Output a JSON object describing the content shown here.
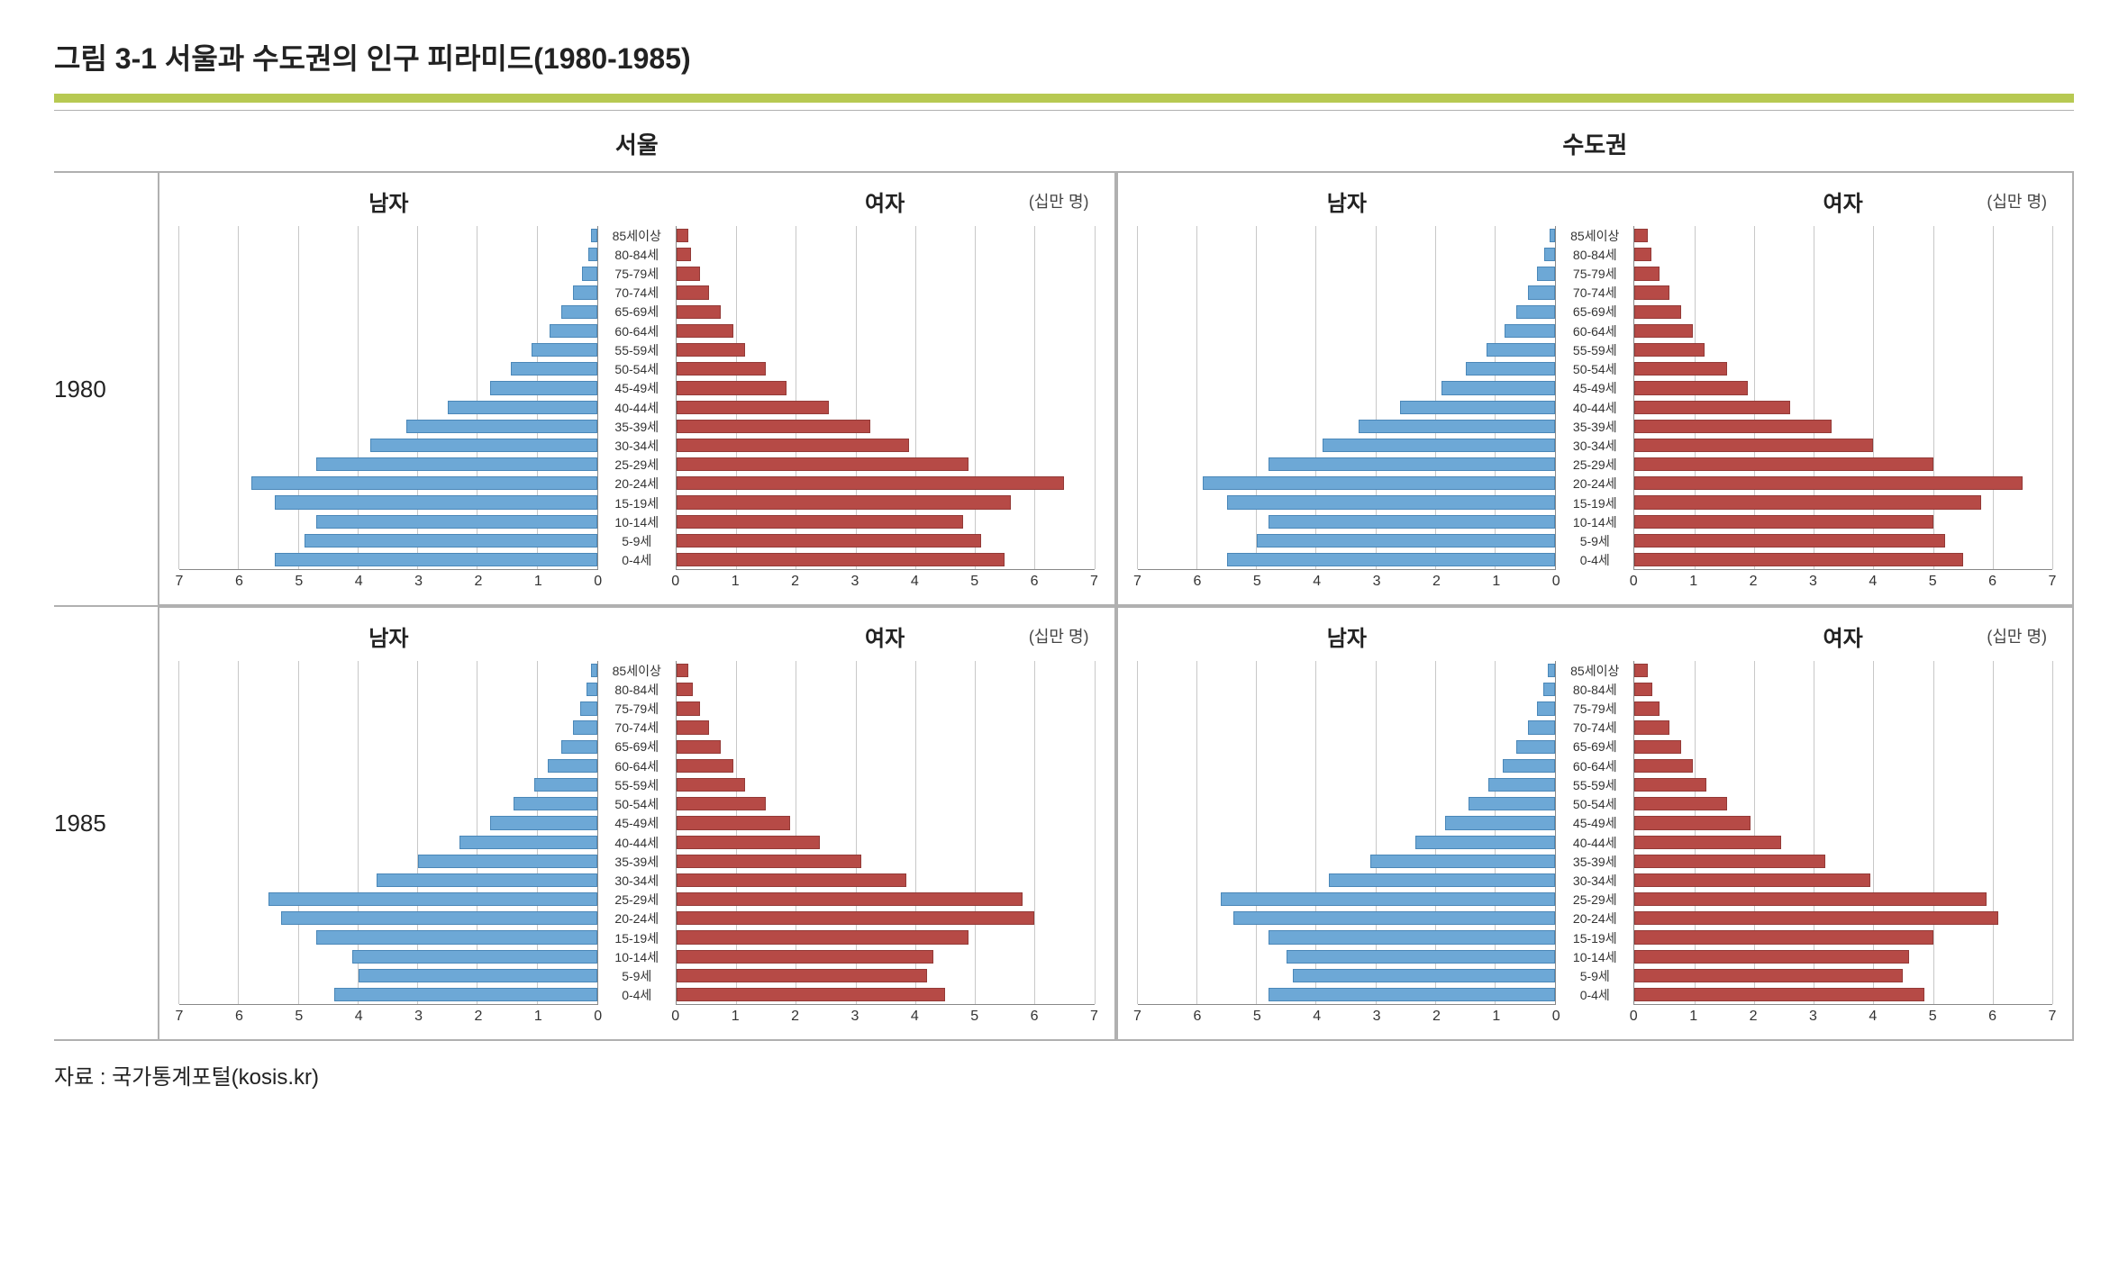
{
  "figure": {
    "title": "그림 3-1 서울과 수도권의 인구 피라미드(1980-1985)",
    "source": "자료 : 국가통계포털(kosis.kr)",
    "accent_bar_color": "#b7c952",
    "rule_color": "#b0b0b0",
    "column_headers": [
      "서울",
      "수도권"
    ],
    "row_headers": [
      "1980",
      "1985"
    ],
    "gender_left": "남자",
    "gender_right": "여자",
    "unit_label": "(십만 명)",
    "age_labels": [
      "85세이상",
      "80-84세",
      "75-79세",
      "70-74세",
      "65-69세",
      "60-64세",
      "55-59세",
      "50-54세",
      "45-49세",
      "40-44세",
      "35-39세",
      "30-34세",
      "25-29세",
      "20-24세",
      "15-19세",
      "10-14세",
      "5-9세",
      "0-4세"
    ],
    "axis": {
      "max": 7,
      "ticks": [
        0,
        1,
        2,
        3,
        4,
        5,
        6,
        7
      ],
      "grid_color": "#c8c8c8",
      "axis_color": "#888888"
    },
    "colors": {
      "male_fill": "#6da8d6",
      "male_border": "#4a87b8",
      "female_fill": "#b64a46",
      "female_border": "#933a37",
      "background": "#ffffff",
      "text": "#222222"
    },
    "typography": {
      "title_fontsize_pt": 24,
      "header_fontsize_pt": 20,
      "gender_fontsize_pt": 18,
      "age_label_fontsize_pt": 11,
      "tick_fontsize_pt": 12,
      "source_fontsize_pt": 18
    },
    "panels": [
      {
        "row": "1980",
        "col": "서울",
        "male": [
          0.1,
          0.15,
          0.25,
          0.4,
          0.6,
          0.8,
          1.1,
          1.45,
          1.8,
          2.5,
          3.2,
          3.8,
          4.7,
          5.8,
          5.4,
          4.7,
          4.9,
          5.4
        ],
        "female": [
          0.2,
          0.25,
          0.4,
          0.55,
          0.75,
          0.95,
          1.15,
          1.5,
          1.85,
          2.55,
          3.25,
          3.9,
          4.9,
          6.5,
          5.6,
          4.8,
          5.1,
          5.5
        ]
      },
      {
        "row": "1980",
        "col": "수도권",
        "male": [
          0.1,
          0.18,
          0.3,
          0.45,
          0.65,
          0.85,
          1.15,
          1.5,
          1.9,
          2.6,
          3.3,
          3.9,
          4.8,
          5.9,
          5.5,
          4.8,
          5.0,
          5.5
        ],
        "female": [
          0.22,
          0.28,
          0.42,
          0.58,
          0.78,
          0.98,
          1.18,
          1.55,
          1.9,
          2.6,
          3.3,
          4.0,
          5.0,
          6.5,
          5.8,
          5.0,
          5.2,
          5.5
        ]
      },
      {
        "row": "1985",
        "col": "서울",
        "male": [
          0.1,
          0.18,
          0.28,
          0.4,
          0.6,
          0.82,
          1.05,
          1.4,
          1.8,
          2.3,
          3.0,
          3.7,
          5.5,
          5.3,
          4.7,
          4.1,
          4.0,
          4.4
        ],
        "female": [
          0.2,
          0.28,
          0.4,
          0.55,
          0.75,
          0.95,
          1.15,
          1.5,
          1.9,
          2.4,
          3.1,
          3.85,
          5.8,
          6.0,
          4.9,
          4.3,
          4.2,
          4.5
        ]
      },
      {
        "row": "1985",
        "col": "수도권",
        "male": [
          0.12,
          0.2,
          0.3,
          0.45,
          0.65,
          0.88,
          1.12,
          1.45,
          1.85,
          2.35,
          3.1,
          3.8,
          5.6,
          5.4,
          4.8,
          4.5,
          4.4,
          4.8
        ],
        "female": [
          0.22,
          0.3,
          0.42,
          0.58,
          0.78,
          0.98,
          1.2,
          1.55,
          1.95,
          2.45,
          3.2,
          3.95,
          5.9,
          6.1,
          5.0,
          4.6,
          4.5,
          4.85
        ]
      }
    ]
  }
}
